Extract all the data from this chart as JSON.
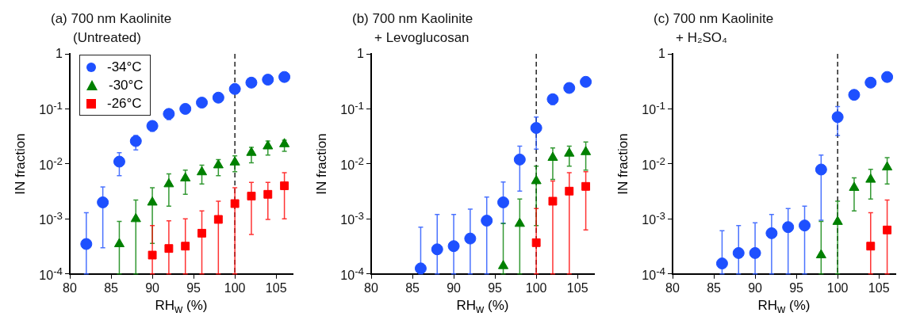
{
  "chart_data": [
    {
      "type": "scatter",
      "title": "(a) 700 nm Kaolinite",
      "subtitle": "(Untreated)",
      "xlabel": "RH$_{w}$ (%)",
      "ylabel": "IN fraction",
      "xlim": [
        80,
        107
      ],
      "xticks": [
        80,
        85,
        90,
        95,
        100,
        105
      ],
      "ylim": [
        0.0001,
        1
      ],
      "yticks": [
        {
          "value": 1,
          "label": "1"
        },
        {
          "value": 0.1,
          "label": "10$^{-1}$"
        },
        {
          "value": 0.01,
          "label": "10$^{-2}$"
        },
        {
          "value": 0.001,
          "label": "10$^{-3}$"
        },
        {
          "value": 0.0001,
          "label": "10$^{-4}$"
        }
      ],
      "log": "y",
      "legend": "top left",
      "ref_lines": [
        {
          "axis": "x",
          "value": 100,
          "color": "#000000",
          "line_style": "dashed"
        }
      ],
      "series": [
        {
          "name": "-34°C",
          "color": "#1e50ff",
          "marker": "circle",
          "x": [
            82,
            84,
            86,
            88,
            90,
            92,
            94,
            96,
            98,
            100,
            102,
            104,
            106
          ],
          "values": [
            0.00035,
            0.002,
            0.011,
            0.026,
            0.049,
            0.081,
            0.1,
            0.13,
            0.16,
            0.23,
            0.3,
            0.34,
            0.38
          ],
          "errors": [
            [
              0.0001,
              0.0013
            ],
            [
              0.0003,
              0.0038
            ],
            [
              0.0061,
              0.016
            ],
            [
              0.018,
              0.033
            ],
            [
              0.039,
              0.059
            ],
            [
              0.064,
              0.091
            ],
            null,
            null,
            null,
            null,
            null,
            null,
            null
          ]
        },
        {
          "name": "-30°C",
          "color": "#008000",
          "marker": "triangle",
          "x": [
            86,
            88,
            90,
            92,
            94,
            96,
            98,
            100,
            102,
            104,
            106
          ],
          "values": [
            0.00035,
            0.001,
            0.002,
            0.0043,
            0.0055,
            0.0071,
            0.0095,
            0.0107,
            0.016,
            0.021,
            0.023
          ],
          "errors": [
            [
              0.0001,
              0.0009
            ],
            [
              0.0001,
              0.0022
            ],
            [
              0.00036,
              0.0037
            ],
            [
              0.0017,
              0.0066
            ],
            [
              0.0028,
              0.0077
            ],
            [
              0.0043,
              0.0095
            ],
            [
              0.0061,
              0.012
            ],
            [
              0.0072,
              0.014
            ],
            [
              0.0105,
              0.02
            ],
            [
              0.0145,
              0.026
            ],
            [
              0.017,
              0.027
            ]
          ]
        },
        {
          "name": "-26°C",
          "color": "#ff0000",
          "marker": "square",
          "x": [
            90,
            92,
            94,
            96,
            98,
            100,
            102,
            104,
            106
          ],
          "values": [
            0.00022,
            0.00029,
            0.00032,
            0.00055,
            0.00098,
            0.0019,
            0.0026,
            0.0028,
            0.004
          ],
          "errors": [
            [
              0.0001,
              0.00076
            ],
            [
              0.0001,
              0.00092
            ],
            [
              0.0001,
              0.001
            ],
            [
              0.0001,
              0.0014
            ],
            [
              0.0001,
              0.0021
            ],
            [
              0.0001,
              0.0037
            ],
            [
              0.00052,
              0.0046
            ],
            [
              0.00098,
              0.0046
            ],
            [
              0.001,
              0.0069
            ]
          ]
        }
      ]
    },
    {
      "type": "scatter",
      "title": "(b) 700 nm Kaolinite",
      "subtitle": "+ Levoglucosan",
      "xlabel": "RH$_{w}$ (%)",
      "ylabel": "IN fraction",
      "xlim": [
        80,
        107
      ],
      "xticks": [
        80,
        85,
        90,
        95,
        100,
        105
      ],
      "ylim": [
        0.0001,
        1
      ],
      "yticks": [
        {
          "value": 1,
          "label": "1"
        },
        {
          "value": 0.1,
          "label": "10$^{-1}$"
        },
        {
          "value": 0.01,
          "label": "10$^{-2}$"
        },
        {
          "value": 0.001,
          "label": "10$^{-3}$"
        },
        {
          "value": 0.0001,
          "label": "10$^{-4}$"
        }
      ],
      "log": "y",
      "ref_lines": [
        {
          "axis": "x",
          "value": 100,
          "color": "#000000",
          "line_style": "dashed"
        }
      ],
      "series": [
        {
          "color": "#1e50ff",
          "marker": "circle",
          "x": [
            86,
            88,
            90,
            92,
            94,
            96,
            98,
            100,
            102,
            104,
            106
          ],
          "values": [
            0.000126,
            0.00028,
            0.00032,
            0.00044,
            0.00093,
            0.002,
            0.012,
            0.045,
            0.15,
            0.24,
            0.31
          ],
          "errors": [
            [
              0.0001,
              0.00071
            ],
            [
              0.0001,
              0.0012
            ],
            [
              0.0001,
              0.0012
            ],
            [
              0.0001,
              0.0015
            ],
            [
              0.0001,
              0.0025
            ],
            [
              0.00083,
              0.0047
            ],
            [
              0.0032,
              0.021
            ],
            [
              0.0185,
              0.071
            ],
            [
              0.12,
              0.18
            ],
            null,
            null
          ]
        },
        {
          "color": "#008000",
          "marker": "triangle",
          "x": [
            96,
            98,
            100,
            102,
            104,
            106
          ],
          "values": [
            0.00014,
            0.00082,
            0.0049,
            0.013,
            0.0155,
            0.0165
          ],
          "errors": [
            [
              0.0001,
              0.00083
            ],
            [
              0.0001,
              0.0023
            ],
            [
              0.00076,
              0.0091
            ],
            [
              0.0052,
              0.0195
            ],
            [
              0.0091,
              0.021
            ],
            [
              0.0077,
              0.025
            ]
          ]
        },
        {
          "color": "#ff0000",
          "marker": "square",
          "x": [
            100,
            102,
            104,
            106
          ],
          "values": [
            0.00037,
            0.0021,
            0.0032,
            0.0039
          ],
          "errors": [
            [
              0.0001,
              0.00155
            ],
            [
              0.0001,
              0.0049
            ],
            [
              0.0001,
              0.0069
            ],
            [
              0.00063,
              0.0072
            ]
          ]
        }
      ]
    },
    {
      "type": "scatter",
      "title": "(c) 700 nm Kaolinite",
      "subtitle": "+ H₂SO₄",
      "xlabel": "RH$_{w}$ (%)",
      "ylabel": "IN fraction",
      "xlim": [
        80,
        107
      ],
      "xticks": [
        80,
        85,
        90,
        95,
        100,
        105
      ],
      "ylim": [
        0.0001,
        1
      ],
      "yticks": [
        {
          "value": 1,
          "label": "1"
        },
        {
          "value": 0.1,
          "label": "10$^{-1}$"
        },
        {
          "value": 0.01,
          "label": "10$^{-2}$"
        },
        {
          "value": 0.001,
          "label": "10$^{-3}$"
        },
        {
          "value": 0.0001,
          "label": "10$^{-4}$"
        }
      ],
      "log": "y",
      "ref_lines": [
        {
          "axis": "x",
          "value": 100,
          "color": "#000000",
          "line_style": "dashed"
        }
      ],
      "series": [
        {
          "color": "#1e50ff",
          "marker": "circle",
          "x": [
            86,
            88,
            90,
            92,
            94,
            96,
            98,
            100,
            102,
            104,
            106
          ],
          "values": [
            0.000155,
            0.00024,
            0.00024,
            0.00055,
            0.00071,
            0.00076,
            0.0079,
            0.071,
            0.18,
            0.3,
            0.38
          ],
          "errors": [
            [
              0.0001,
              0.00061
            ],
            [
              0.0001,
              0.00076
            ],
            [
              0.0001,
              0.00085
            ],
            [
              0.0001,
              0.0012
            ],
            [
              0.0001,
              0.00155
            ],
            [
              0.0001,
              0.0017
            ],
            [
              0.00095,
              0.0145
            ],
            [
              0.033,
              0.11
            ],
            null,
            null,
            null
          ]
        },
        {
          "color": "#008000",
          "marker": "triangle",
          "x": [
            98,
            100,
            102,
            104,
            106
          ],
          "values": [
            0.00022,
            0.00089,
            0.0037,
            0.0052,
            0.0087
          ],
          "errors": [
            [
              0.0001,
              0.0009
            ],
            [
              0.0001,
              0.0021
            ],
            [
              0.0014,
              0.0056
            ],
            [
              0.0023,
              0.008
            ],
            [
              0.0043,
              0.013
            ]
          ]
        },
        {
          "color": "#ff0000",
          "marker": "square",
          "x": [
            104,
            106
          ],
          "values": [
            0.00032,
            0.00063
          ],
          "errors": [
            [
              0.0001,
              0.0013
            ],
            [
              0.0001,
              0.0022
            ]
          ]
        }
      ]
    }
  ]
}
